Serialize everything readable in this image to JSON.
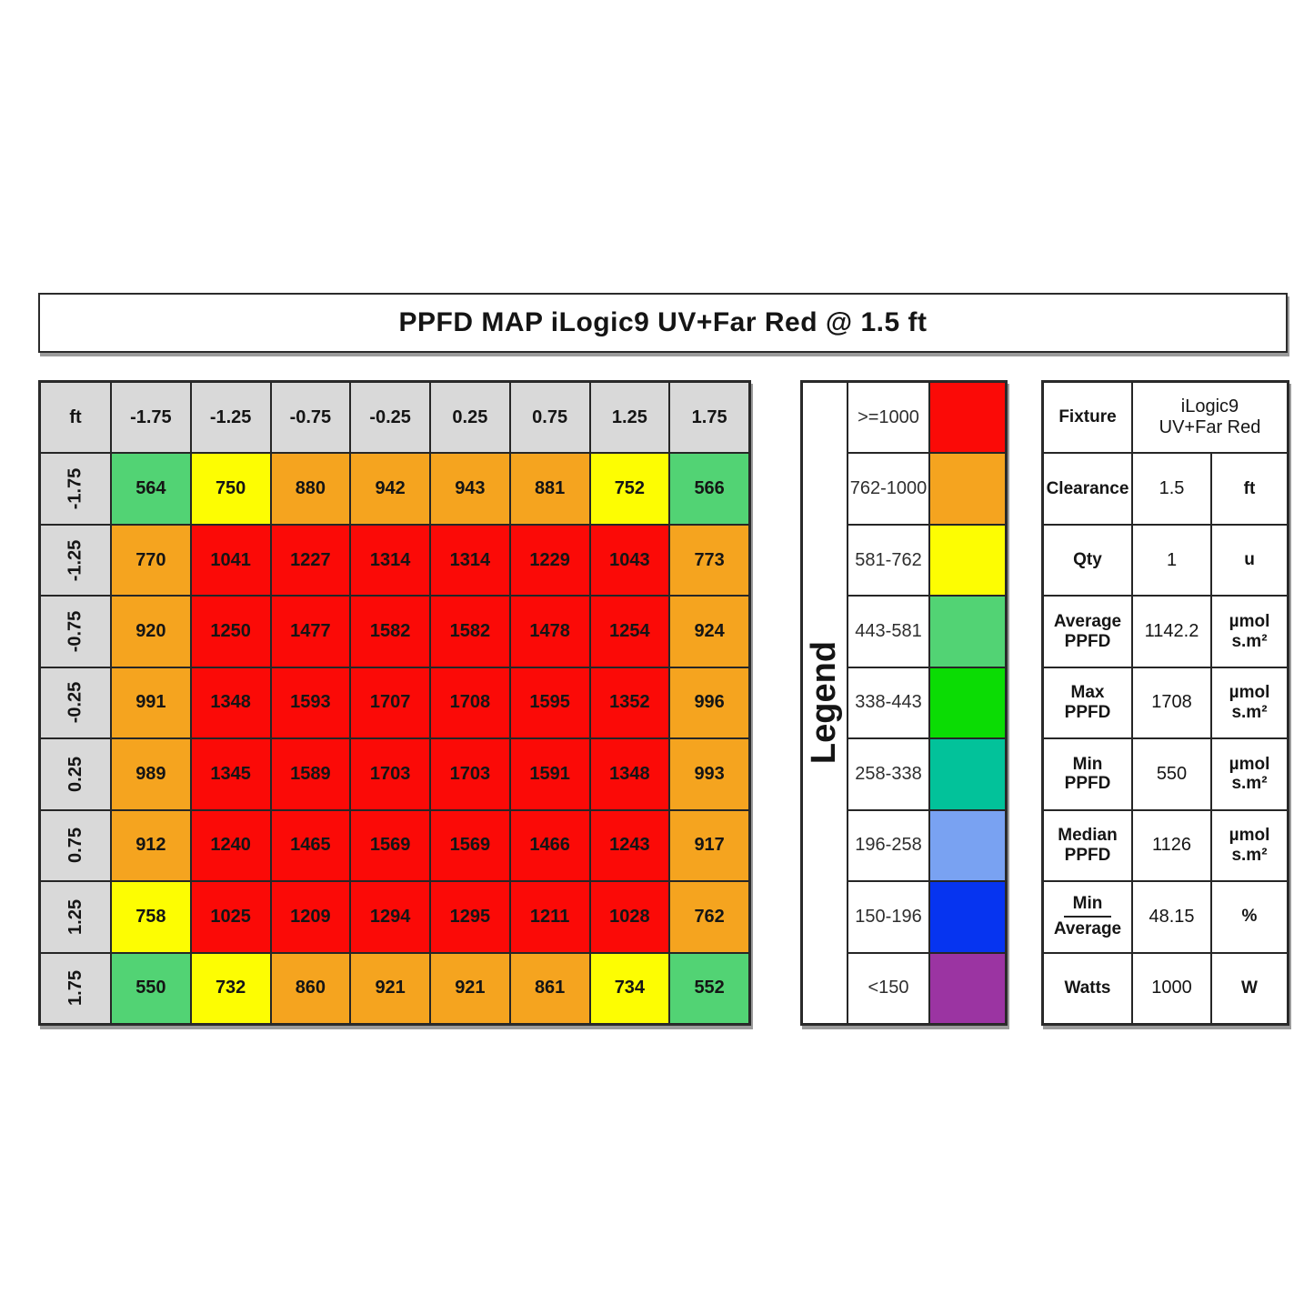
{
  "title": "PPFD MAP iLogic9 UV+Far Red @ 1.5 ft",
  "colors": {
    "header_bg": "#d9d9d9",
    "border": "#262626"
  },
  "chart_data": {
    "type": "heatmap",
    "title": "PPFD MAP iLogic9 UV+Far Red @ 1.5 ft",
    "corner_label": "ft",
    "x": [
      "-1.75",
      "-1.25",
      "-0.75",
      "-0.25",
      "0.25",
      "0.75",
      "1.25",
      "1.75"
    ],
    "y": [
      "-1.75",
      "-1.25",
      "-0.75",
      "-0.25",
      "0.25",
      "0.75",
      "1.25",
      "1.75"
    ],
    "values": [
      [
        564,
        750,
        880,
        942,
        943,
        881,
        752,
        566
      ],
      [
        770,
        1041,
        1227,
        1314,
        1314,
        1229,
        1043,
        773
      ],
      [
        920,
        1250,
        1477,
        1582,
        1582,
        1478,
        1254,
        924
      ],
      [
        991,
        1348,
        1593,
        1707,
        1708,
        1595,
        1352,
        996
      ],
      [
        989,
        1345,
        1589,
        1703,
        1703,
        1591,
        1348,
        993
      ],
      [
        912,
        1240,
        1465,
        1569,
        1569,
        1466,
        1243,
        917
      ],
      [
        758,
        1025,
        1209,
        1294,
        1295,
        1211,
        1028,
        762
      ],
      [
        550,
        732,
        860,
        921,
        921,
        861,
        734,
        552
      ]
    ],
    "legend": {
      "title": "Legend",
      "bands": [
        {
          "label": ">=1000",
          "min": 1000,
          "color": "#fb0a07"
        },
        {
          "label": "762-1000",
          "min": 762,
          "color": "#f5a41f"
        },
        {
          "label": "581-762",
          "min": 581,
          "color": "#fdfd02"
        },
        {
          "label": "443-581",
          "min": 443,
          "color": "#52d374"
        },
        {
          "label": "338-443",
          "min": 338,
          "color": "#0bdc04"
        },
        {
          "label": "258-338",
          "min": 258,
          "color": "#02c29a"
        },
        {
          "label": "196-258",
          "min": 196,
          "color": "#79a2f2"
        },
        {
          "label": "150-196",
          "min": 150,
          "color": "#0634f0"
        },
        {
          "label": "<150",
          "min": 0,
          "color": "#9b34a2"
        }
      ]
    }
  },
  "info_table": {
    "rows": [
      {
        "label": "Fixture",
        "value": "iLogic9\nUV+Far Red",
        "unit": "",
        "merged": true
      },
      {
        "label": "Clearance",
        "value": "1.5",
        "unit": "ft"
      },
      {
        "label": "Qty",
        "value": "1",
        "unit": "u"
      },
      {
        "label": "Average\nPPFD",
        "value": "1142.2",
        "unit": "µmol\ns.m²"
      },
      {
        "label": "Max\nPPFD",
        "value": "1708",
        "unit": "µmol\ns.m²"
      },
      {
        "label": "Min\nPPFD",
        "value": "550",
        "unit": "µmol\ns.m²"
      },
      {
        "label": "Median\nPPFD",
        "value": "1126",
        "unit": "µmol\ns.m²"
      },
      {
        "fraction": [
          "Min",
          "Average"
        ],
        "value": "48.15",
        "unit": "%"
      },
      {
        "label": "Watts",
        "value": "1000",
        "unit": "W"
      }
    ]
  }
}
